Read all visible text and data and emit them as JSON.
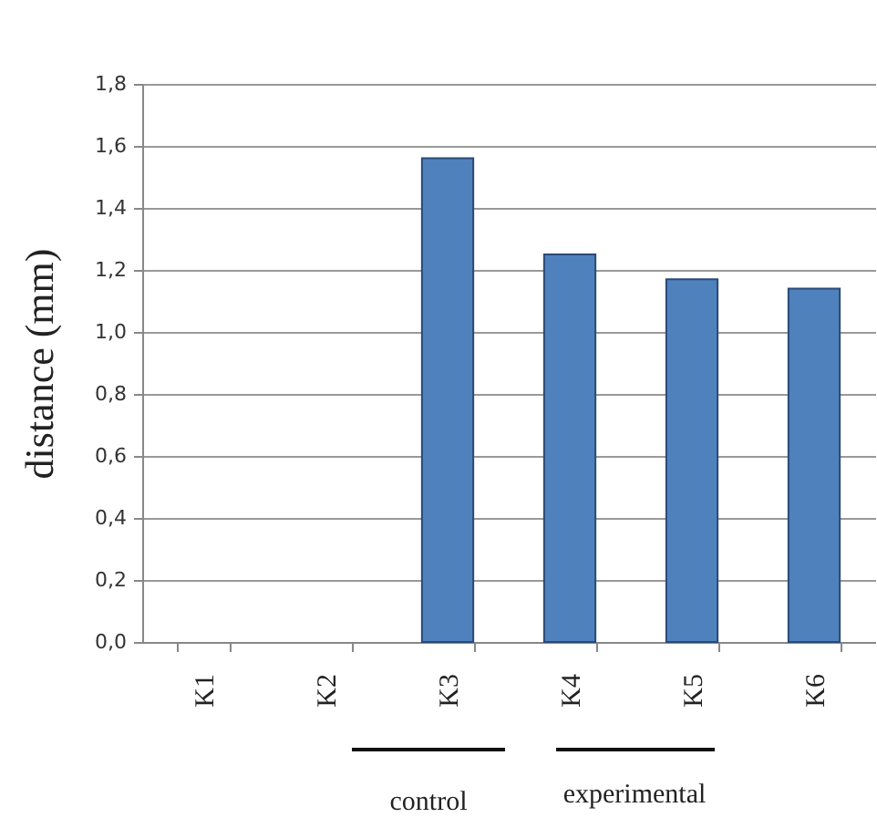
{
  "chart_data": {
    "type": "bar",
    "ylabel": "distance (mm)",
    "categories": [
      "K1",
      "K2",
      "K3",
      "K4",
      "K5",
      "K6"
    ],
    "values": [
      null,
      null,
      1.56,
      1.25,
      1.17,
      1.14
    ],
    "color": "#4f81bd",
    "ylim": [
      0,
      1.8
    ],
    "yticks": [
      {
        "value": 0,
        "label": "0,0"
      },
      {
        "value": 0.2,
        "label": "0,2"
      },
      {
        "value": 0.4,
        "label": "0,4"
      },
      {
        "value": 0.6,
        "label": "0,6"
      },
      {
        "value": 0.8,
        "label": "0,8"
      },
      {
        "value": 1,
        "label": "1,0"
      },
      {
        "value": 1.2,
        "label": "1,2"
      },
      {
        "value": 1.4,
        "label": "1,4"
      },
      {
        "value": 1.6,
        "label": "1,6"
      },
      {
        "value": 1.8,
        "label": "1,8"
      }
    ],
    "grid": "y",
    "annotations": [
      "control",
      "experimental"
    ]
  }
}
